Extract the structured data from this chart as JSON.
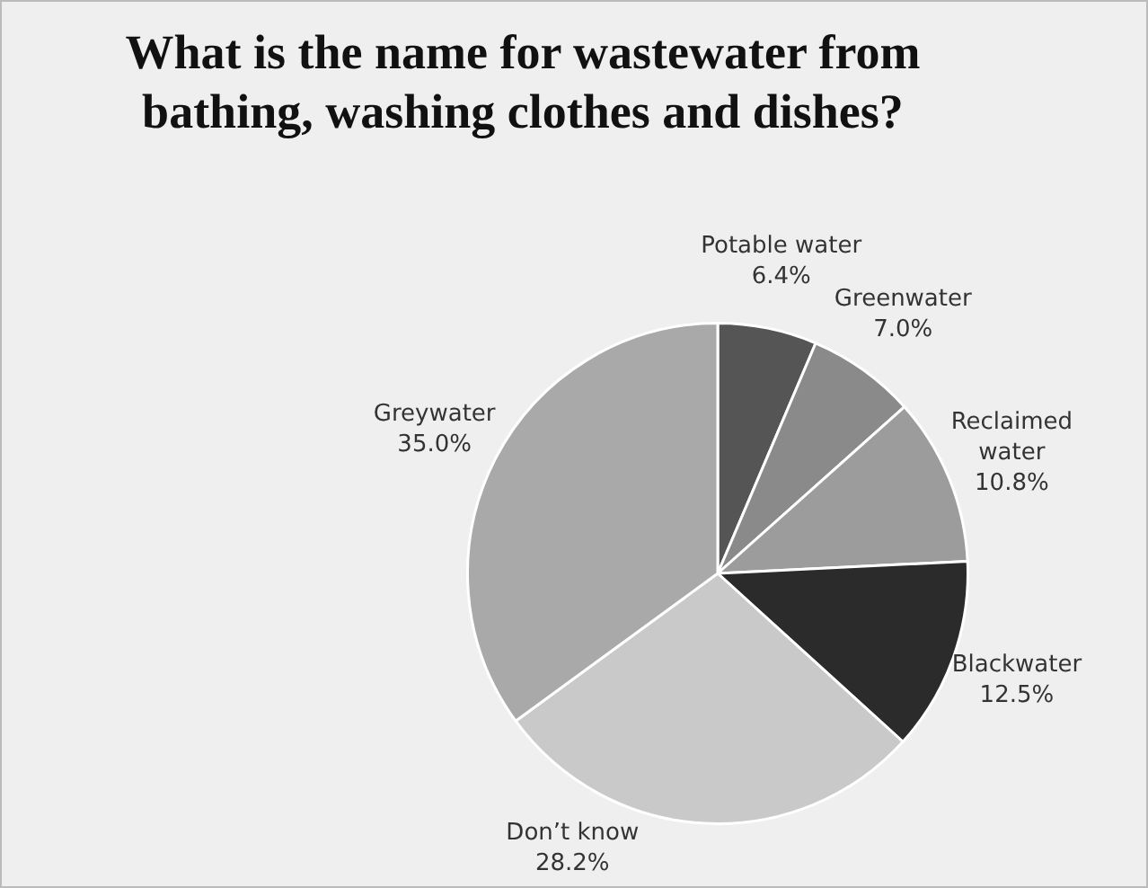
{
  "chart_data": {
    "type": "pie",
    "title": "What is the name for wastewater from bathing, washing clothes and dishes?",
    "categories": [
      "Potable water",
      "Greenwater",
      "Reclaimed water",
      "Blackwater",
      "Don’t know",
      "Greywater"
    ],
    "values": [
      6.4,
      7.0,
      10.8,
      12.5,
      28.2,
      35.0
    ],
    "value_labels": [
      "6.4%",
      "7.0%",
      "10.8%",
      "12.5%",
      "28.2%",
      "35.0%"
    ],
    "colors": [
      "#555555",
      "#8a8a8a",
      "#9c9c9c",
      "#2b2b2b",
      "#c9c9c9",
      "#a9a9a9"
    ],
    "legend": false
  }
}
